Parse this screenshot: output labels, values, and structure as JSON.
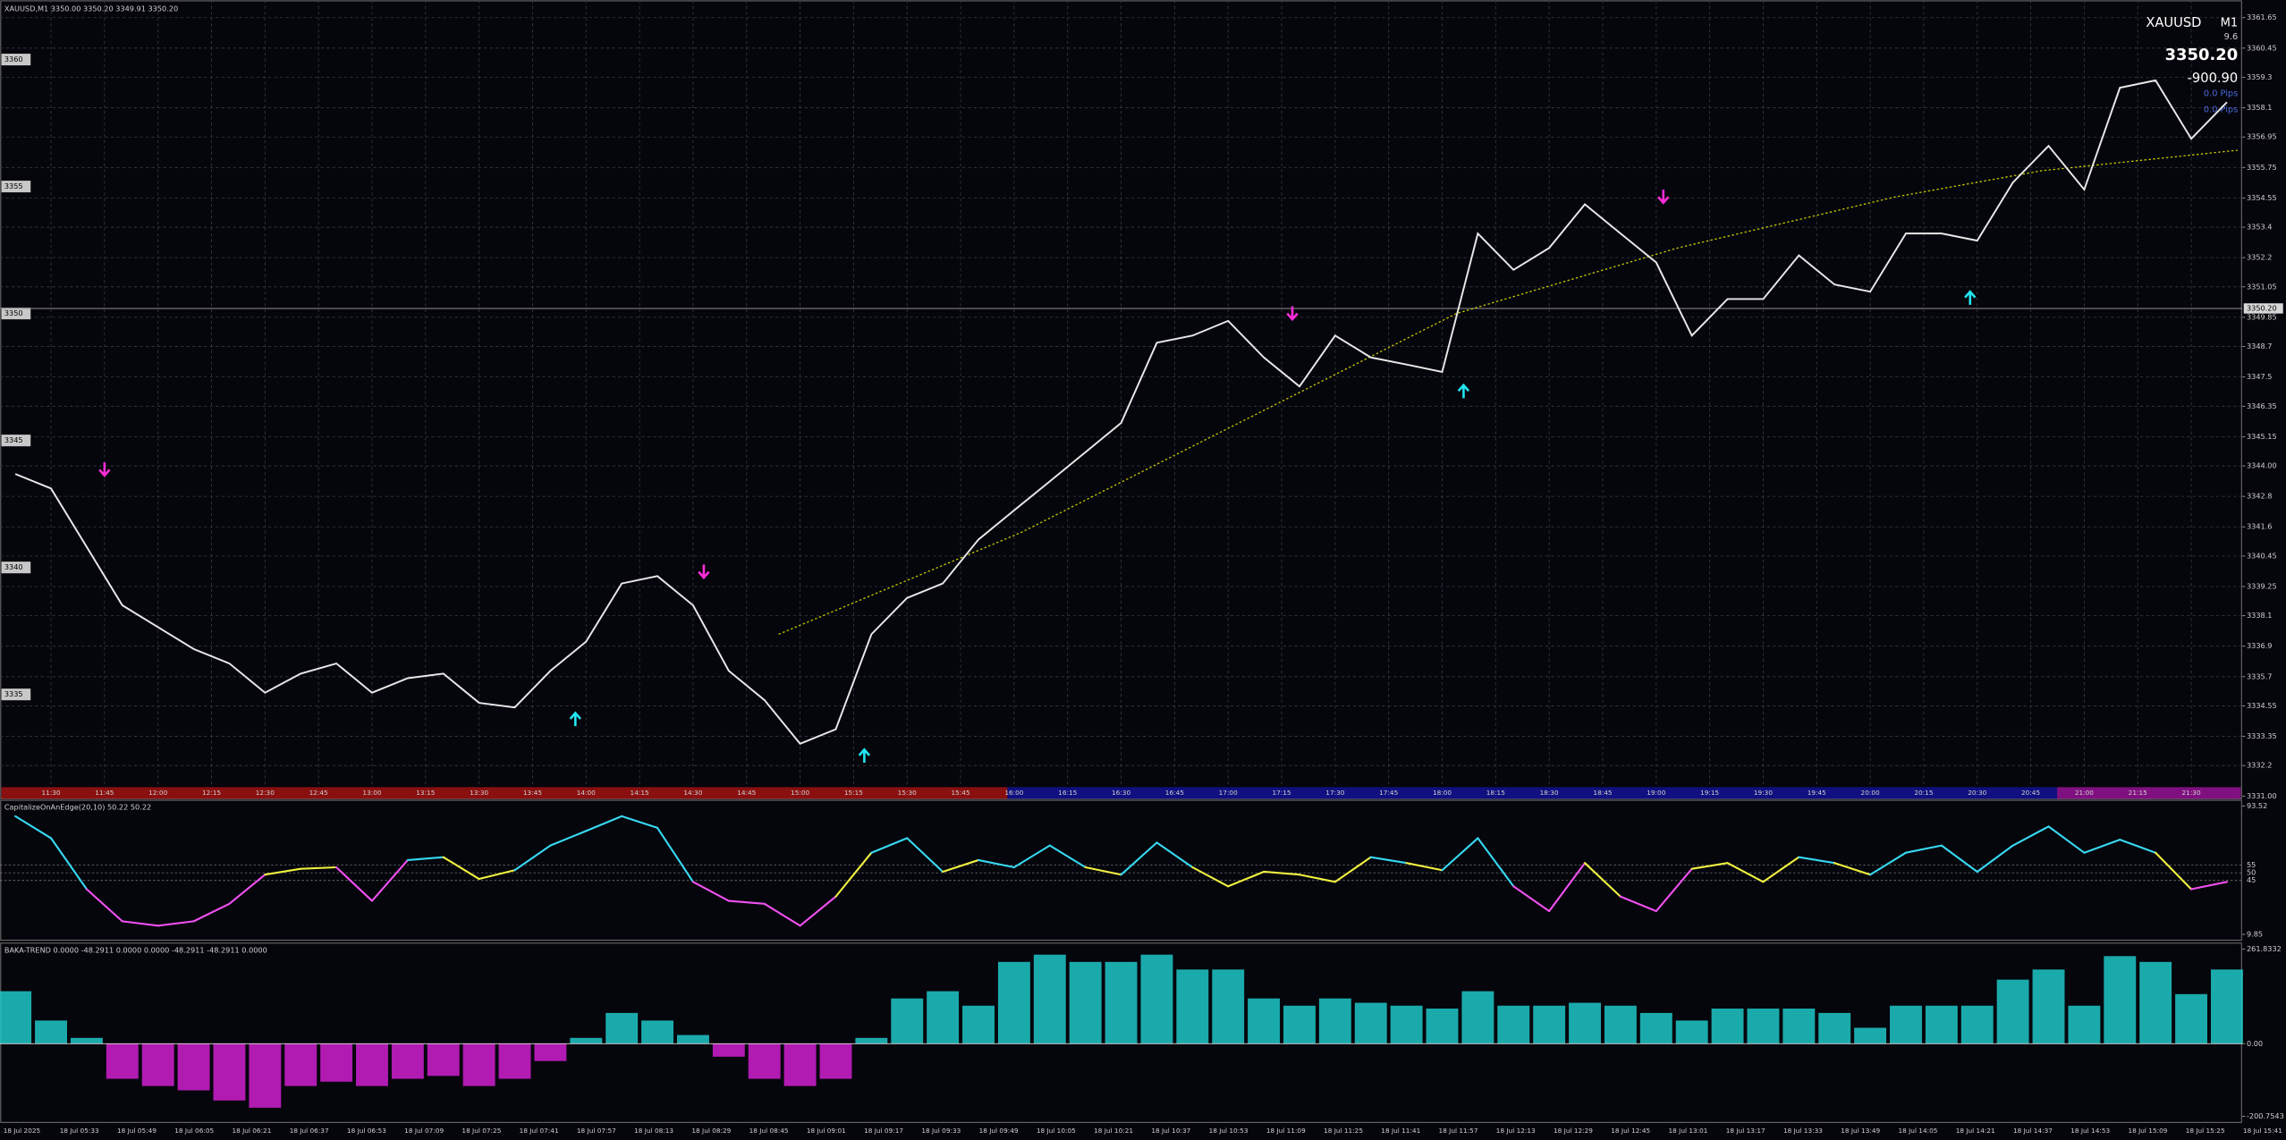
{
  "chart_data": [
    {
      "type": "line",
      "title": "XAUUSD,M1  3350.00 3350.20 3349.91 3350.20",
      "info": {
        "symbol": "XAUUSD",
        "timeframe": "M1",
        "spread": "9.6",
        "price": "3350.20",
        "profit": "-900.90",
        "pips_1": "0.0 Pips",
        "pips_2": "0.0 Pips"
      },
      "x": [
        680,
        690,
        700,
        710,
        720,
        730,
        740,
        750,
        760,
        770,
        780,
        790,
        800,
        810,
        820,
        830,
        840,
        850,
        860,
        870,
        880,
        890,
        900,
        910,
        920,
        930,
        940,
        950,
        960,
        970,
        980,
        990,
        1000,
        1010,
        1020,
        1030,
        1040,
        1050,
        1060,
        1070,
        1080,
        1090,
        1100,
        1110,
        1120,
        1130,
        1140,
        1150,
        1160,
        1170,
        1180,
        1190,
        1200,
        1210,
        1220,
        1230,
        1240,
        1250,
        1260,
        1270,
        1280,
        1290,
        1300
      ],
      "values": [
        3343.68,
        3343.11,
        3340.81,
        3338.51,
        3337.65,
        3336.79,
        3336.22,
        3335.07,
        3335.82,
        3336.22,
        3335.07,
        3335.64,
        3335.82,
        3334.67,
        3334.49,
        3335.93,
        3337.08,
        3339.37,
        3339.66,
        3338.51,
        3335.93,
        3334.78,
        3333.06,
        3333.63,
        3337.37,
        3338.8,
        3339.37,
        3341.1,
        3342.25,
        3343.39,
        3344.54,
        3345.69,
        3348.85,
        3349.13,
        3349.71,
        3348.27,
        3347.13,
        3349.13,
        3348.27,
        3347.99,
        3347.7,
        3353.15,
        3351.72,
        3352.58,
        3354.3,
        3353.15,
        3352.01,
        3349.13,
        3350.57,
        3350.57,
        3352.29,
        3351.14,
        3350.86,
        3353.15,
        3353.15,
        3352.87,
        3355.16,
        3356.6,
        3354.88,
        3358.89,
        3359.18,
        3356.88,
        3358.32
      ],
      "color": "#e8e8e8",
      "xlim": [
        675.7,
        1304.3
      ],
      "xticks": [
        {
          "value": 690,
          "label": "11:30"
        },
        {
          "value": 705,
          "label": "11:45"
        },
        {
          "value": 720,
          "label": "12:00"
        },
        {
          "value": 735,
          "label": "12:15"
        },
        {
          "value": 750,
          "label": "12:30"
        },
        {
          "value": 765,
          "label": "12:45"
        },
        {
          "value": 780,
          "label": "13:00"
        },
        {
          "value": 795,
          "label": "13:15"
        },
        {
          "value": 810,
          "label": "13:30"
        },
        {
          "value": 825,
          "label": "13:45"
        },
        {
          "value": 840,
          "label": "14:00"
        },
        {
          "value": 855,
          "label": "14:15"
        },
        {
          "value": 870,
          "label": "14:30"
        },
        {
          "value": 885,
          "label": "14:45"
        },
        {
          "value": 900,
          "label": "15:00"
        },
        {
          "value": 915,
          "label": "15:15"
        },
        {
          "value": 930,
          "label": "15:30"
        },
        {
          "value": 945,
          "label": "15:45"
        },
        {
          "value": 960,
          "label": "16:00"
        },
        {
          "value": 975,
          "label": "16:15"
        },
        {
          "value": 990,
          "label": "16:30"
        },
        {
          "value": 1005,
          "label": "16:45"
        },
        {
          "value": 1020,
          "label": "17:00"
        },
        {
          "value": 1035,
          "label": "17:15"
        },
        {
          "value": 1050,
          "label": "17:30"
        },
        {
          "value": 1065,
          "label": "17:45"
        },
        {
          "value": 1080,
          "label": "18:00"
        },
        {
          "value": 1095,
          "label": "18:15"
        },
        {
          "value": 1110,
          "label": "18:30"
        },
        {
          "value": 1125,
          "label": "18:45"
        },
        {
          "value": 1140,
          "label": "19:00"
        },
        {
          "value": 1155,
          "label": "19:15"
        },
        {
          "value": 1170,
          "label": "19:30"
        },
        {
          "value": 1185,
          "label": "19:45"
        },
        {
          "value": 1200,
          "label": "20:00"
        },
        {
          "value": 1215,
          "label": "20:15"
        },
        {
          "value": 1230,
          "label": "20:30"
        },
        {
          "value": 1245,
          "label": "20:45"
        },
        {
          "value": 1260,
          "label": "21:00"
        },
        {
          "value": 1275,
          "label": "21:15"
        },
        {
          "value": 1290,
          "label": "21:30"
        }
      ],
      "ylim": [
        3330.89,
        3362.34
      ],
      "yticks": [
        3361.65,
        3360.45,
        3359.3,
        3358.1,
        3356.95,
        3355.75,
        3354.55,
        3353.4,
        3352.2,
        3351.05,
        3349.85,
        3348.7,
        3347.5,
        3346.35,
        3345.15,
        {
          "value": 3344,
          "label": "3344.00"
        },
        3342.8,
        3341.6,
        3340.45,
        3339.25,
        3338.1,
        3336.9,
        3335.7,
        3334.55,
        3333.35,
        3332.2,
        {
          "value": 3331,
          "label": "3331.00"
        }
      ],
      "grid": true,
      "bid": {
        "value": 3350.2,
        "label": "3350.20"
      },
      "levels": [
        3360,
        3355,
        3350,
        3345,
        3340,
        3335
      ],
      "ma": {
        "x": [
          894,
          962,
          1023,
          1084,
          1146,
          1207,
          1248,
          1303
        ],
        "values": [
          3337.37,
          3341.38,
          3345.69,
          3350,
          3352.58,
          3354.59,
          3355.62,
          3356.43
        ],
        "color": "#c8c800"
      },
      "sell_signals": {
        "x": [
          705,
          873,
          1038,
          1142
        ],
        "values": [
          3343.85,
          3339.83,
          3350,
          3354.59
        ],
        "color": "#ff2dd8"
      },
      "buy_signals": {
        "x": [
          837,
          918,
          1086,
          1228
        ],
        "values": [
          3334.04,
          3332.6,
          3346.95,
          3350.63
        ],
        "color": "#22e5f0"
      },
      "date_labels": [
        "18 Jul 2025",
        "18 Jul 05:33",
        "18 Jul 05:49",
        "18 Jul 06:05",
        "18 Jul 06:21",
        "18 Jul 06:37",
        "18 Jul 06:53",
        "18 Jul 07:09",
        "18 Jul 07:25",
        "18 Jul 07:41",
        "18 Jul 07:57",
        "18 Jul 08:13",
        "18 Jul 08:29",
        "18 Jul 08:45",
        "18 Jul 09:01",
        "18 Jul 09:17",
        "18 Jul 09:33",
        "18 Jul 09:49",
        "18 Jul 10:05",
        "18 Jul 10:21",
        "18 Jul 10:37",
        "18 Jul 10:53",
        "18 Jul 11:09",
        "18 Jul 11:25",
        "18 Jul 11:41",
        "18 Jul 11:57",
        "18 Jul 12:13",
        "18 Jul 12:29",
        "18 Jul 12:45",
        "18 Jul 13:01",
        "18 Jul 13:17",
        "18 Jul 13:33",
        "18 Jul 13:49",
        "18 Jul 14:05",
        "18 Jul 14:21",
        "18 Jul 14:37",
        "18 Jul 14:53",
        "18 Jul 15:09",
        "18 Jul 15:25",
        "18 Jul 15:41"
      ]
    },
    {
      "type": "line",
      "title": "CapitalizeOnAnEdge(20,10) 50.22 50.22",
      "x": [
        680,
        690,
        700,
        710,
        720,
        730,
        740,
        750,
        760,
        770,
        780,
        790,
        800,
        810,
        820,
        830,
        840,
        850,
        860,
        870,
        880,
        890,
        900,
        910,
        920,
        930,
        940,
        950,
        960,
        970,
        980,
        990,
        1000,
        1010,
        1020,
        1030,
        1040,
        1050,
        1060,
        1070,
        1080,
        1090,
        1100,
        1110,
        1120,
        1130,
        1140,
        1150,
        1160,
        1170,
        1180,
        1190,
        1200,
        1210,
        1220,
        1230,
        1240,
        1250,
        1260,
        1270,
        1280,
        1290,
        1300
      ],
      "values": [
        86.9,
        72.6,
        39.3,
        18.4,
        15.5,
        18.4,
        29.8,
        48.8,
        52.6,
        53.6,
        31.7,
        58.3,
        60.2,
        46,
        51.7,
        67.8,
        77.3,
        86.9,
        79.3,
        44.1,
        31.7,
        29.8,
        15.5,
        34.5,
        63.1,
        72.6,
        50.7,
        58.3,
        53.6,
        67.8,
        53.6,
        48.8,
        69.7,
        53.6,
        41.2,
        50.7,
        48.8,
        44.1,
        60.2,
        56.4,
        51.7,
        72.6,
        41.2,
        25,
        56.4,
        34.5,
        25,
        52.6,
        56.4,
        44.1,
        60.2,
        56.4,
        48.8,
        63.1,
        67.8,
        50.7,
        67.8,
        80.2,
        63.1,
        71.6,
        63.1,
        39.3,
        44.1
      ],
      "colors": {
        "up": "#38d8f0",
        "mid": "#f0f040",
        "down": "#f050f0"
      },
      "xlim": [
        675.7,
        1304.3
      ],
      "ylim": [
        6.05,
        97.3
      ],
      "yticks": [
        93.52,
        9.85
      ],
      "levels": [
        55,
        50,
        45
      ]
    },
    {
      "type": "bar",
      "title": "BAKA-TREND  0.0000 -48.2911 0.0000 0.0000 -48.2911 -48.2911 0.0000",
      "x": [
        680,
        690,
        700,
        710,
        720,
        730,
        740,
        750,
        760,
        770,
        780,
        790,
        800,
        810,
        820,
        830,
        840,
        850,
        860,
        870,
        880,
        890,
        900,
        910,
        920,
        930,
        940,
        950,
        960,
        970,
        980,
        990,
        1000,
        1010,
        1020,
        1030,
        1040,
        1050,
        1060,
        1070,
        1080,
        1090,
        1100,
        1110,
        1120,
        1130,
        1140,
        1150,
        1160,
        1170,
        1180,
        1190,
        1200,
        1210,
        1220,
        1230,
        1240,
        1250,
        1260,
        1270,
        1280,
        1290,
        1300
      ],
      "values": [
        145,
        64,
        16,
        -97,
        -117,
        -129,
        -157,
        -177,
        -117,
        -105,
        -117,
        -97,
        -89,
        -117,
        -97,
        -48,
        16,
        85,
        64,
        24,
        -36,
        -97,
        -117,
        -97,
        16,
        125,
        145,
        105,
        226,
        246,
        226,
        226,
        246,
        205,
        205,
        125,
        105,
        125,
        113,
        105,
        97,
        145,
        105,
        105,
        113,
        105,
        85,
        64,
        97,
        97,
        97,
        85,
        44,
        105,
        105,
        105,
        177,
        205,
        105,
        242,
        226,
        137,
        205
      ],
      "colors": {
        "positive": "#20c8c8",
        "negative": "#d020d0"
      },
      "xlim": [
        675.7,
        1304.3
      ],
      "ylim": [
        -217.5,
        277.9
      ],
      "yticks": [
        261.8332,
        {
          "value": 0,
          "label": "0.00"
        },
        -200.7543
      ]
    }
  ]
}
